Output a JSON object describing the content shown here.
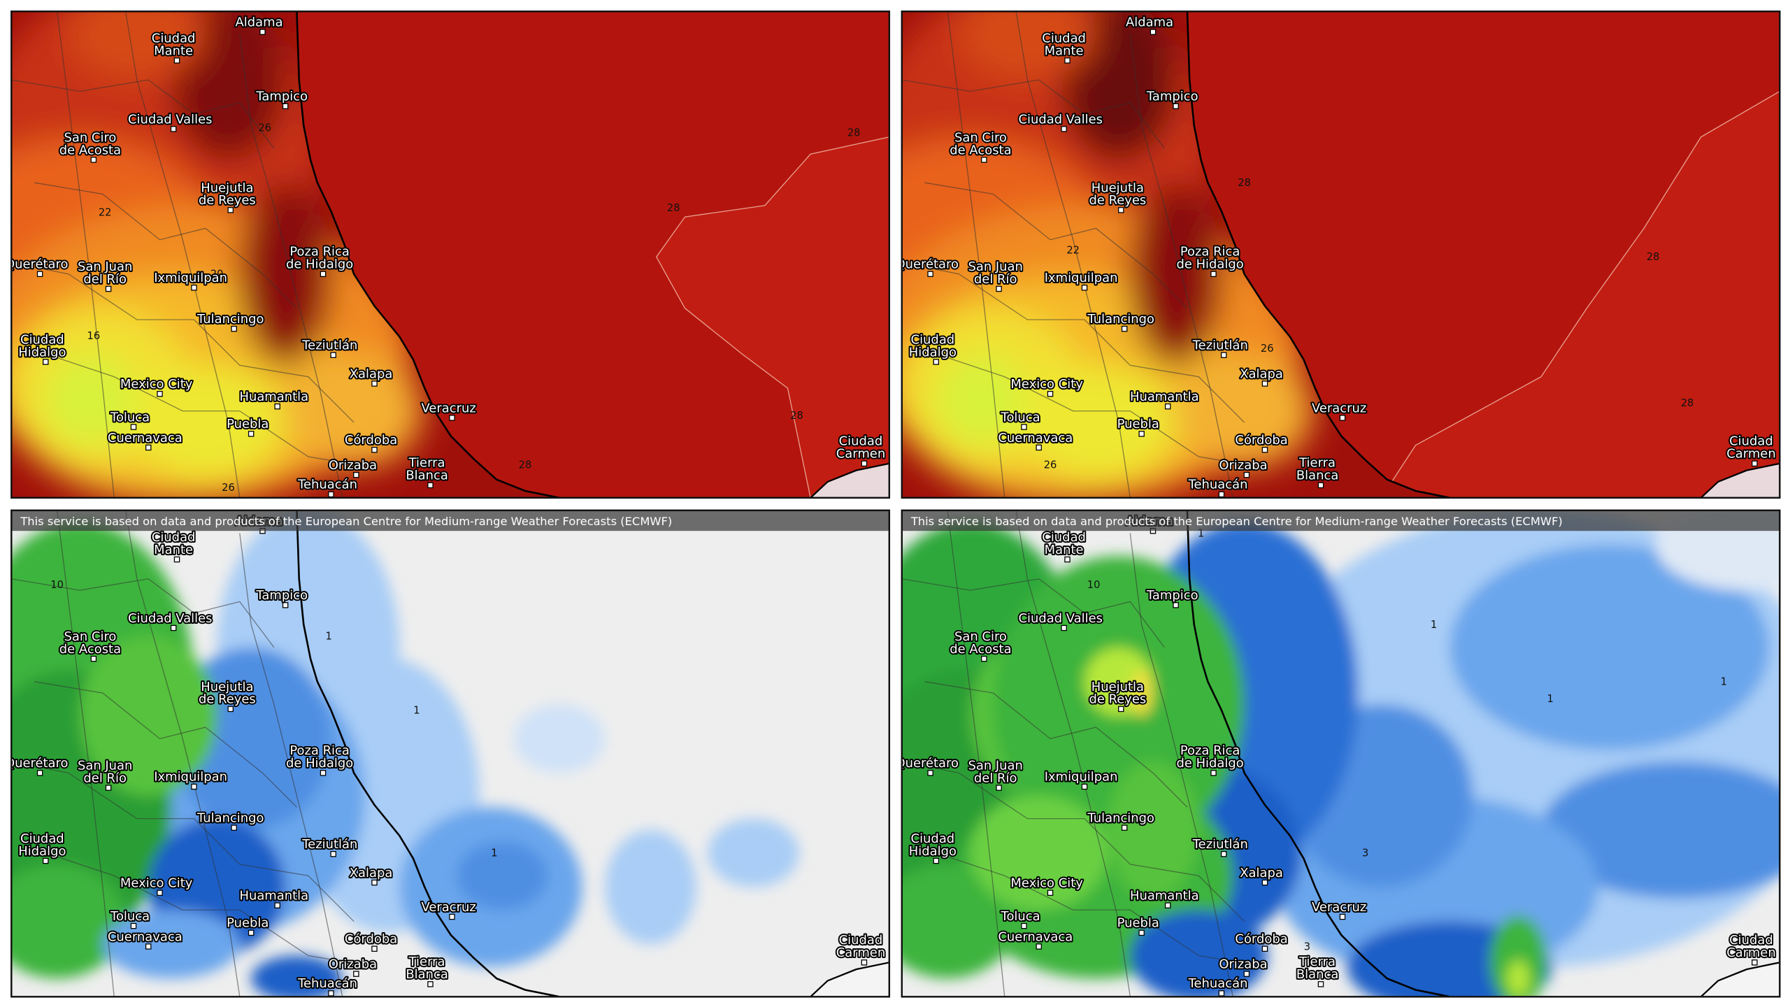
{
  "banner": "This service is based on data and products of the European Centre for Medium-range Weather Forecasts (ECMWF)",
  "cities": [
    {
      "name": [
        "Ciudad",
        "Mante"
      ]
    },
    {
      "name": [
        "Aldama"
      ]
    },
    {
      "name": [
        "Tampico"
      ]
    },
    {
      "name": [
        "Ciudad Valles"
      ]
    },
    {
      "name": [
        "San Ciro",
        "de Acosta"
      ]
    },
    {
      "name": [
        "Huejutla",
        "de Reyes"
      ]
    },
    {
      "name": [
        "Poza Rica",
        "de Hidalgo"
      ]
    },
    {
      "name": [
        "Querétaro"
      ]
    },
    {
      "name": [
        "San Juan",
        "del Río"
      ]
    },
    {
      "name": [
        "Ixmiquilpan"
      ]
    },
    {
      "name": [
        "Tulancingo"
      ]
    },
    {
      "name": [
        "Teziutlán"
      ]
    },
    {
      "name": [
        "Ciudad",
        "Hidalgo"
      ]
    },
    {
      "name": [
        "Xalapa"
      ]
    },
    {
      "name": [
        "Mexico City"
      ]
    },
    {
      "name": [
        "Huamantla"
      ]
    },
    {
      "name": [
        "Veracruz"
      ]
    },
    {
      "name": [
        "Toluca"
      ]
    },
    {
      "name": [
        "Puebla"
      ]
    },
    {
      "name": [
        "Cuernavaca"
      ]
    },
    {
      "name": [
        "Córdoba"
      ]
    },
    {
      "name": [
        "Orizaba"
      ]
    },
    {
      "name": [
        "Tierra",
        "Blanca"
      ]
    },
    {
      "name": [
        "Tehuacán"
      ]
    },
    {
      "name": [
        "Ciudad",
        "Carmen"
      ]
    }
  ],
  "panels": [
    {
      "contour_labels": [
        28,
        28,
        28,
        28,
        26,
        22,
        20,
        16,
        26
      ]
    },
    {
      "contour_labels": [
        28,
        28,
        28,
        22,
        26,
        26
      ]
    },
    {
      "contour_labels": [
        1,
        1,
        1,
        10
      ]
    },
    {
      "contour_labels": [
        1,
        1,
        1,
        1,
        10,
        3,
        3
      ]
    }
  ]
}
